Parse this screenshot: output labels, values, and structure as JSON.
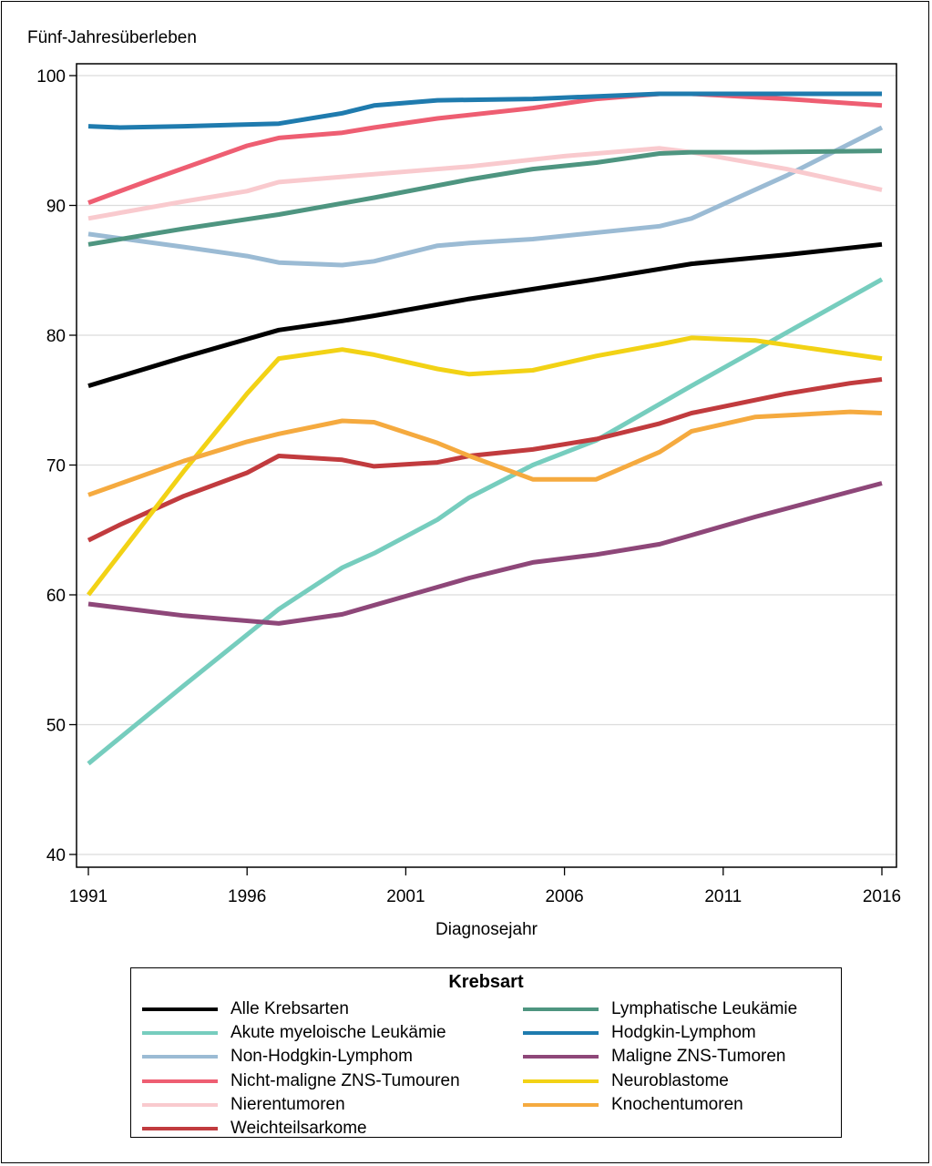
{
  "chart_data": {
    "type": "line",
    "title": "",
    "xlabel": "Diagnosejahr",
    "ylabel": "Fünf-Jahresüberleben",
    "xlim": [
      1991,
      2016
    ],
    "ylim": [
      40,
      100
    ],
    "xticks": [
      1991,
      1996,
      2001,
      2006,
      2011,
      2016
    ],
    "yticks": [
      40,
      50,
      60,
      70,
      80,
      90,
      100
    ],
    "grid": "horizontal",
    "legend": {
      "title": "Krebsart",
      "placement": "bottom",
      "columns": 2
    },
    "series": [
      {
        "name": "Alle Krebsarten",
        "color": "#000000",
        "column": 1,
        "points": [
          [
            1991,
            76.1
          ],
          [
            1994,
            78.3
          ],
          [
            1997,
            80.4
          ],
          [
            1999,
            81.1
          ],
          [
            2000,
            81.5
          ],
          [
            2003,
            82.8
          ],
          [
            2007,
            84.3
          ],
          [
            2010,
            85.5
          ],
          [
            2013,
            86.2
          ],
          [
            2016,
            87.0
          ]
        ]
      },
      {
        "name": "Akute myeloische Leukämie",
        "color": "#76CDBE",
        "column": 1,
        "points": [
          [
            1991,
            47.0
          ],
          [
            1992,
            49.0
          ],
          [
            1994,
            53.0
          ],
          [
            1997,
            58.9
          ],
          [
            1999,
            62.1
          ],
          [
            2000,
            63.2
          ],
          [
            2002,
            65.8
          ],
          [
            2003,
            67.5
          ],
          [
            2005,
            70.0
          ],
          [
            2007,
            71.9
          ],
          [
            2010,
            76.1
          ],
          [
            2013,
            80.2
          ],
          [
            2016,
            84.3
          ]
        ]
      },
      {
        "name": "Non-Hodgkin-Lymphom",
        "color": "#9BBBD4",
        "column": 1,
        "points": [
          [
            1991,
            87.8
          ],
          [
            1994,
            86.8
          ],
          [
            1996,
            86.1
          ],
          [
            1997,
            85.6
          ],
          [
            1999,
            85.4
          ],
          [
            2000,
            85.7
          ],
          [
            2002,
            86.9
          ],
          [
            2003,
            87.1
          ],
          [
            2005,
            87.4
          ],
          [
            2009,
            88.4
          ],
          [
            2010,
            89.0
          ],
          [
            2013,
            92.3
          ],
          [
            2016,
            96.0
          ]
        ]
      },
      {
        "name": "Nicht-maligne ZNS-Tumouren",
        "color": "#EE5E72",
        "column": 1,
        "points": [
          [
            1991,
            90.2
          ],
          [
            1993,
            92.0
          ],
          [
            1996,
            94.6
          ],
          [
            1997,
            95.2
          ],
          [
            1999,
            95.6
          ],
          [
            2000,
            96.0
          ],
          [
            2002,
            96.7
          ],
          [
            2005,
            97.5
          ],
          [
            2007,
            98.2
          ],
          [
            2009,
            98.6
          ],
          [
            2010,
            98.6
          ],
          [
            2013,
            98.2
          ],
          [
            2016,
            97.7
          ]
        ]
      },
      {
        "name": "Nierentumoren",
        "color": "#F9CACE",
        "column": 1,
        "points": [
          [
            1991,
            89.0
          ],
          [
            1994,
            90.3
          ],
          [
            1996,
            91.1
          ],
          [
            1997,
            91.8
          ],
          [
            1999,
            92.2
          ],
          [
            2003,
            93.0
          ],
          [
            2006,
            93.8
          ],
          [
            2009,
            94.4
          ],
          [
            2010,
            94.1
          ],
          [
            2013,
            92.8
          ],
          [
            2016,
            91.2
          ]
        ]
      },
      {
        "name": "Weichteilsarkome",
        "color": "#C13B3E",
        "column": 1,
        "points": [
          [
            1991,
            64.2
          ],
          [
            1992,
            65.4
          ],
          [
            1994,
            67.6
          ],
          [
            1996,
            69.4
          ],
          [
            1997,
            70.7
          ],
          [
            1999,
            70.4
          ],
          [
            2000,
            69.9
          ],
          [
            2002,
            70.2
          ],
          [
            2003,
            70.7
          ],
          [
            2005,
            71.2
          ],
          [
            2007,
            72.0
          ],
          [
            2009,
            73.2
          ],
          [
            2010,
            74.0
          ],
          [
            2013,
            75.5
          ],
          [
            2015,
            76.3
          ],
          [
            2016,
            76.6
          ]
        ]
      },
      {
        "name": "Lymphatische Leukämie",
        "color": "#4E9580",
        "column": 2,
        "points": [
          [
            1991,
            87.0
          ],
          [
            1994,
            88.2
          ],
          [
            1997,
            89.3
          ],
          [
            2000,
            90.6
          ],
          [
            2003,
            92.0
          ],
          [
            2005,
            92.8
          ],
          [
            2007,
            93.3
          ],
          [
            2009,
            94.0
          ],
          [
            2010,
            94.1
          ],
          [
            2012,
            94.1
          ],
          [
            2016,
            94.2
          ]
        ]
      },
      {
        "name": "Hodgkin-Lymphom",
        "color": "#1F7BAE",
        "column": 2,
        "points": [
          [
            1991,
            96.1
          ],
          [
            1992,
            96.0
          ],
          [
            1994,
            96.1
          ],
          [
            1997,
            96.3
          ],
          [
            1999,
            97.1
          ],
          [
            2000,
            97.7
          ],
          [
            2002,
            98.1
          ],
          [
            2005,
            98.2
          ],
          [
            2009,
            98.6
          ],
          [
            2016,
            98.6
          ]
        ]
      },
      {
        "name": "Maligne ZNS-Tumoren",
        "color": "#8E4779",
        "column": 2,
        "points": [
          [
            1991,
            59.3
          ],
          [
            1994,
            58.4
          ],
          [
            1997,
            57.8
          ],
          [
            1999,
            58.5
          ],
          [
            2002,
            60.6
          ],
          [
            2003,
            61.3
          ],
          [
            2005,
            62.5
          ],
          [
            2007,
            63.1
          ],
          [
            2009,
            63.9
          ],
          [
            2010,
            64.6
          ],
          [
            2012,
            66.0
          ],
          [
            2016,
            68.6
          ]
        ]
      },
      {
        "name": "Neuroblastome",
        "color": "#F2D215",
        "column": 2,
        "points": [
          [
            1991,
            60.0
          ],
          [
            1994,
            69.5
          ],
          [
            1996,
            75.5
          ],
          [
            1997,
            78.2
          ],
          [
            1999,
            78.9
          ],
          [
            2000,
            78.5
          ],
          [
            2002,
            77.4
          ],
          [
            2003,
            77.0
          ],
          [
            2005,
            77.3
          ],
          [
            2007,
            78.4
          ],
          [
            2009,
            79.3
          ],
          [
            2010,
            79.8
          ],
          [
            2012,
            79.6
          ],
          [
            2016,
            78.2
          ]
        ]
      },
      {
        "name": "Knochentumoren",
        "color": "#F5AA3F",
        "column": 2,
        "points": [
          [
            1991,
            67.7
          ],
          [
            1994,
            70.3
          ],
          [
            1996,
            71.8
          ],
          [
            1997,
            72.4
          ],
          [
            1999,
            73.4
          ],
          [
            2000,
            73.3
          ],
          [
            2002,
            71.7
          ],
          [
            2003,
            70.7
          ],
          [
            2005,
            68.9
          ],
          [
            2007,
            68.9
          ],
          [
            2009,
            71.0
          ],
          [
            2010,
            72.6
          ],
          [
            2012,
            73.7
          ],
          [
            2015,
            74.1
          ],
          [
            2016,
            74.0
          ]
        ]
      }
    ]
  }
}
